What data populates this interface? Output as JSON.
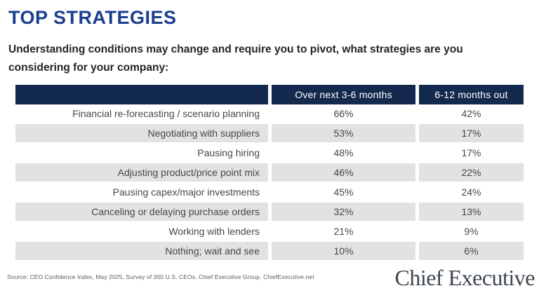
{
  "page": {
    "title": "TOP STRATEGIES",
    "subtitle": "Understanding conditions may change and require you to pivot, what strategies are you considering for your company:",
    "source": "Source: CEO Confidence Index, May 2025, Survey of 300 U.S. CEOs. Chief Executive Group. ChiefExecutive.net",
    "brand": "Chief Executive"
  },
  "colors": {
    "title_blue": "#1b3e8f",
    "header_navy": "#14294e",
    "row_alt_gray": "#e2e2e2",
    "body_text": "#474747",
    "brand_color": "#3e4650"
  },
  "table": {
    "headers": [
      "",
      "Over next 3-6 months",
      "6-12 months out"
    ],
    "rows": [
      {
        "label": "Financial re-forecasting / scenario planning",
        "values": [
          "66%",
          "42%"
        ]
      },
      {
        "label": "Negotiating with suppliers",
        "values": [
          "53%",
          "17%"
        ]
      },
      {
        "label": "Pausing hiring",
        "values": [
          "48%",
          "17%"
        ]
      },
      {
        "label": "Adjusting product/price point mix",
        "values": [
          "46%",
          "22%"
        ]
      },
      {
        "label": "Pausing capex/major investments",
        "values": [
          "45%",
          "24%"
        ]
      },
      {
        "label": "Canceling or delaying purchase orders",
        "values": [
          "32%",
          "13%"
        ]
      },
      {
        "label": "Working with lenders",
        "values": [
          "21%",
          "9%"
        ]
      },
      {
        "label": "Nothing; wait and see",
        "values": [
          "10%",
          "6%"
        ]
      }
    ]
  },
  "chart_data": {
    "type": "table",
    "title": "TOP STRATEGIES",
    "subtitle": "Understanding conditions may change and require you to pivot, what strategies are you considering for your company:",
    "categories": [
      "Financial re-forecasting / scenario planning",
      "Negotiating with suppliers",
      "Pausing hiring",
      "Adjusting product/price point mix",
      "Pausing capex/major investments",
      "Canceling or delaying purchase orders",
      "Working with lenders",
      "Nothing; wait and see"
    ],
    "series": [
      {
        "name": "Over next 3-6 months",
        "values": [
          66,
          53,
          48,
          46,
          45,
          32,
          21,
          10
        ]
      },
      {
        "name": "6-12 months out",
        "values": [
          42,
          17,
          17,
          22,
          24,
          13,
          9,
          6
        ]
      }
    ],
    "unit": "%",
    "source": "Source: CEO Confidence Index, May 2025, Survey of 300 U.S. CEOs. Chief Executive Group. ChiefExecutive.net"
  }
}
